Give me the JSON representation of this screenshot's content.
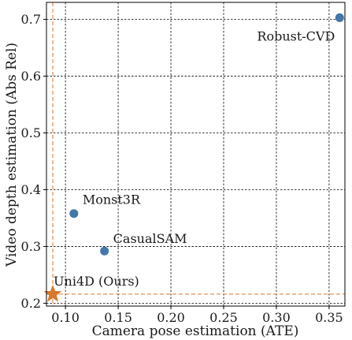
{
  "chart_data": {
    "type": "scatter",
    "xlabel": "Camera pose estimation (ATE)",
    "ylabel": "Video depth estimation (Abs Rel)",
    "xlim": [
      0.082,
      0.365
    ],
    "ylim": [
      0.195,
      0.73
    ],
    "xticks": [
      0.1,
      0.15,
      0.2,
      0.25,
      0.3,
      0.35
    ],
    "xtick_labels": [
      "0.10",
      "0.15",
      "0.20",
      "0.25",
      "0.30",
      "0.35"
    ],
    "yticks": [
      0.2,
      0.3,
      0.4,
      0.5,
      0.6,
      0.7
    ],
    "ytick_labels": [
      "0.2",
      "0.3",
      "0.4",
      "0.5",
      "0.6",
      "0.7"
    ],
    "grid": true,
    "points": [
      {
        "label": "Robust-CVD",
        "x": 0.36,
        "y": 0.703,
        "marker": "circle",
        "color": "#4477aa"
      },
      {
        "label": "Monst3R",
        "x": 0.108,
        "y": 0.358,
        "marker": "circle",
        "color": "#4477aa"
      },
      {
        "label": "CasualSAM",
        "x": 0.137,
        "y": 0.292,
        "marker": "circle",
        "color": "#4477aa"
      },
      {
        "label": "Uni4D (Ours)",
        "x": 0.088,
        "y": 0.216,
        "marker": "star",
        "color": "#d9772b"
      }
    ],
    "reference_lines": {
      "x": 0.088,
      "y": 0.216,
      "color": "#d9772b",
      "style": "dashed"
    }
  }
}
